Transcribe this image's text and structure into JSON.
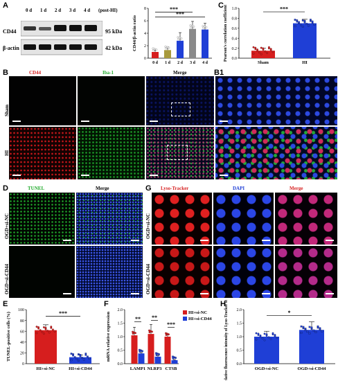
{
  "panel_labels": {
    "A": "A",
    "B": "B",
    "B1": "B1",
    "C": "C",
    "D": "D",
    "E": "E",
    "F": "F",
    "G": "G",
    "H": "H"
  },
  "blot": {
    "lanes": [
      "0 d",
      "1 d",
      "2 d",
      "3 d",
      "4 d"
    ],
    "post": "(post-HI)",
    "rows": [
      {
        "name": "CD44",
        "kda": "95 kDa"
      },
      {
        "name": "β-actin",
        "kda": "42 kDa"
      }
    ]
  },
  "panelB": {
    "cols": [
      "CD44",
      "Iba-1",
      "Merge"
    ],
    "rows": [
      "Sham",
      "HI"
    ]
  },
  "panelD": {
    "cols": [
      "TUNEL",
      "Merge"
    ],
    "rows": [
      "OGD+si-NC",
      "OGD+si-CD44"
    ]
  },
  "panelG": {
    "cols": [
      "Lyso-Tracker",
      "DAPI",
      "Merge"
    ],
    "rows": [
      "OGD+si-NC",
      "OGD+si-CD44"
    ]
  },
  "colors": {
    "red": "#d61e1e",
    "green": "#1faa2a",
    "blue": "#1f3fd6",
    "darkred": "#c0191f",
    "olive": "#a89a3c"
  },
  "chart_data": [
    {
      "id": "A",
      "type": "bar",
      "categories": [
        "0 d",
        "1 d",
        "2 d",
        "3 d",
        "4 d"
      ],
      "values": [
        1.0,
        1.3,
        2.8,
        4.7,
        4.6
      ],
      "errors": [
        0.3,
        0.5,
        1.3,
        1.2,
        1.0
      ],
      "ylabel": "CD44/β-actin ratio",
      "ylim": [
        0,
        8
      ],
      "yticks": [
        "0",
        "2",
        "4",
        "6",
        "8"
      ],
      "sig": [
        "***",
        "***"
      ]
    },
    {
      "id": "C",
      "type": "bar",
      "categories": [
        "Sham",
        "HI"
      ],
      "values": [
        0.15,
        0.7
      ],
      "errors": [
        0.05,
        0.08
      ],
      "ylabel": "Pearson's correlation coefficient",
      "ylim": [
        0,
        1.0
      ],
      "yticks": [
        "0.0",
        "0.2",
        "0.4",
        "0.6",
        "0.8",
        "1.0"
      ],
      "sig": "***"
    },
    {
      "id": "E",
      "type": "bar",
      "categories": [
        "HI+si-NC",
        "HI+si-CD44"
      ],
      "values": [
        62,
        12
      ],
      "errors": [
        10,
        4
      ],
      "ylabel": "TUNEL-positive cells (%)",
      "ylim": [
        0,
        100
      ],
      "yticks": [
        "0",
        "20",
        "40",
        "60",
        "80",
        "100"
      ],
      "sig": "***"
    },
    {
      "id": "F",
      "type": "bar",
      "categories": [
        "LAMP1",
        "NLRP3",
        "CTSB"
      ],
      "series": [
        {
          "name": "HI+si-NC",
          "values": [
            1.05,
            1.1,
            1.0
          ],
          "errors": [
            0.3,
            0.35,
            0.1
          ]
        },
        {
          "name": "HI+si-CD44",
          "values": [
            0.38,
            0.26,
            0.13
          ],
          "errors": [
            0.03,
            0.03,
            0.02
          ]
        }
      ],
      "ylabel": "mRNA relative expression",
      "ylim": [
        0,
        2.0
      ],
      "yticks": [
        "0.0",
        "0.5",
        "1.0",
        "1.5",
        "2.0"
      ],
      "sig": [
        "**",
        "**",
        "***"
      ]
    },
    {
      "id": "H",
      "type": "bar",
      "categories": [
        "OGD+si-NC",
        "OGD+si-CD44"
      ],
      "values": [
        1.0,
        1.25
      ],
      "errors": [
        0.2,
        0.3
      ],
      "ylabel": "Relative fluorescence intensity of Lyso-Tracker staining",
      "ylim": [
        0,
        2.0
      ],
      "yticks": [
        "0.0",
        "0.5",
        "1.0",
        "1.5",
        "2.0"
      ],
      "sig": "*"
    }
  ]
}
